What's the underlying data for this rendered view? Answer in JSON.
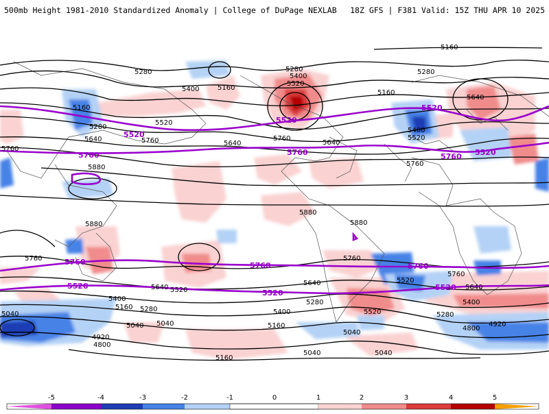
{
  "header": {
    "title_left": "500mb Height 1981-2010 Standardized Anomaly | College of DuPage NEXLAB",
    "title_right": "18Z GFS | F381 Valid: 15Z THU APR 10 2025"
  },
  "map": {
    "contour_labels_black": [
      "5160",
      "5280",
      "5400",
      "5160",
      "5280",
      "5400",
      "5520",
      "5280",
      "5160",
      "5640",
      "5160",
      "5280",
      "5520",
      "5640",
      "5760",
      "5640",
      "5760",
      "5640",
      "5400",
      "5520",
      "5760",
      "5880",
      "5880",
      "5880",
      "5880",
      "5760",
      "5760",
      "5760",
      "5640",
      "5520",
      "5400",
      "5160",
      "5280",
      "5040",
      "4920",
      "4800",
      "5040",
      "5520",
      "5640",
      "5760",
      "5640",
      "5520",
      "5400",
      "5280",
      "5160",
      "5040",
      "5040",
      "5040",
      "5400",
      "5280",
      "5160",
      "5040",
      "4920",
      "4800"
    ],
    "contour_labels_purple": [
      "5520",
      "5520",
      "5760",
      "5760",
      "5520",
      "5760",
      "5760",
      "5760",
      "5760",
      "5520",
      "5520",
      "5520",
      "5520"
    ],
    "colors": {
      "contour": "#000000",
      "highlight_contour": "#9900cc",
      "neg_5": "#e04fe0",
      "neg_4": "#8c00c8",
      "neg_3": "#1e3cb4",
      "neg_2": "#4682e6",
      "neg_1": "#b4d2f5",
      "zero": "#ffffff",
      "pos_1": "#fad2d2",
      "pos_2": "#f08c8c",
      "pos_3": "#dc3c3c",
      "pos_4": "#b40000",
      "pos_5": "#f5a000"
    }
  },
  "colorbar": {
    "ticks": [
      "-5",
      "-4",
      "-3",
      "-2",
      "-1",
      "0",
      "1",
      "2",
      "3",
      "4",
      "5"
    ]
  }
}
